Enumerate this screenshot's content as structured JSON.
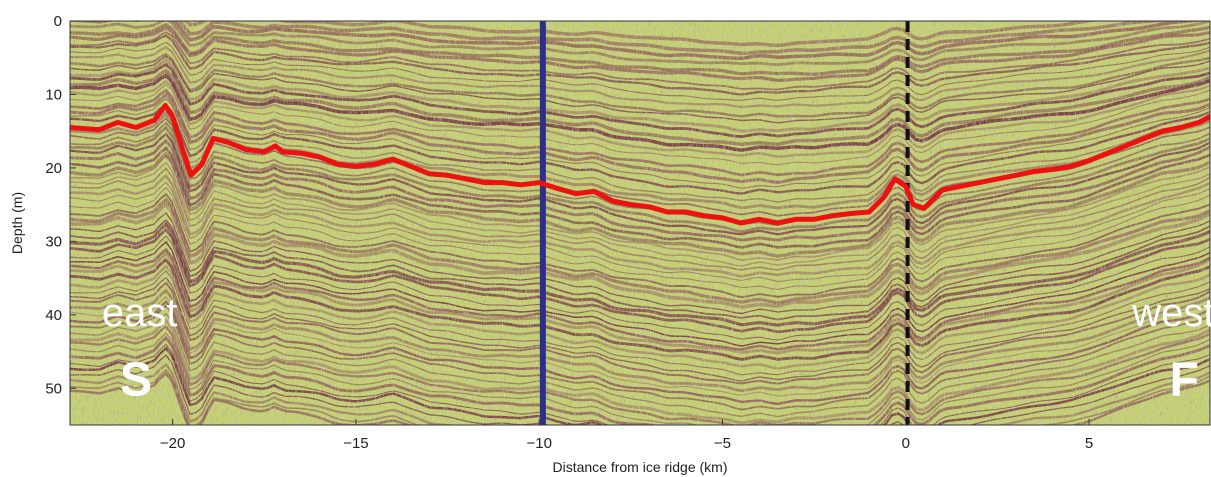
{
  "chart_data": {
    "type": "image",
    "xlabel": "Distance from ice ridge (km)",
    "ylabel": "Depth (m)",
    "xlim": [
      -22.8,
      8.3
    ],
    "ylim": [
      55,
      0
    ],
    "y_inverted": true,
    "x_ticks": [
      -20,
      -15,
      -10,
      -5,
      0,
      5
    ],
    "x_tick_labels": [
      "−20",
      "−15",
      "−10",
      "−5",
      "0",
      "5"
    ],
    "y_ticks": [
      0,
      10,
      20,
      30,
      40,
      50
    ],
    "y_tick_labels": [
      "0",
      "10",
      "20",
      "30",
      "40",
      "50"
    ],
    "colors": {
      "background_light": "#c6d36a",
      "background_dark": "#7a2e3e",
      "trace": "#ee1111",
      "solid_marker": "#2b2f8a",
      "dashed_marker": "#111111"
    },
    "reference_lines": [
      {
        "x": -9.9,
        "style": "solid",
        "color": "#2b2f8a"
      },
      {
        "x": 0.05,
        "style": "dashed",
        "color": "#111111"
      }
    ],
    "series": [
      {
        "x": [
          -22.8,
          -22.0,
          -21.5,
          -21.0,
          -20.5,
          -20.2,
          -20.0,
          -19.7,
          -19.5,
          -19.2,
          -18.9,
          -18.5,
          -18.0,
          -17.5,
          -17.2,
          -17.0,
          -16.5,
          -16.0,
          -15.5,
          -15.0,
          -14.5,
          -14.0,
          -13.5,
          -13.0,
          -12.5,
          -12.0,
          -11.5,
          -11.0,
          -10.5,
          -10.0,
          -9.5,
          -9.0,
          -8.5,
          -8.0,
          -7.5,
          -7.0,
          -6.5,
          -6.0,
          -5.5,
          -5.0,
          -4.5,
          -4.0,
          -3.5,
          -3.0,
          -2.5,
          -2.0,
          -1.5,
          -1.0,
          -0.6,
          -0.3,
          0.0,
          0.2,
          0.5,
          0.8,
          1.0,
          1.5,
          2.0,
          2.5,
          3.0,
          3.5,
          4.0,
          4.5,
          5.0,
          5.5,
          6.0,
          6.5,
          7.0,
          7.5,
          8.0,
          8.3
        ],
        "values": [
          14.5,
          14.8,
          13.8,
          14.5,
          13.5,
          11.5,
          13.0,
          18.0,
          21.0,
          19.5,
          16.0,
          16.5,
          17.5,
          17.8,
          17.0,
          17.8,
          18.0,
          18.5,
          19.5,
          19.8,
          19.5,
          18.8,
          19.8,
          20.8,
          21.0,
          21.5,
          22.0,
          22.0,
          22.3,
          22.0,
          22.8,
          23.5,
          23.2,
          24.5,
          25.0,
          25.3,
          26.0,
          26.0,
          26.5,
          26.8,
          27.5,
          27.0,
          27.5,
          27.0,
          27.0,
          26.5,
          26.2,
          26.0,
          24.0,
          21.5,
          22.5,
          25.0,
          25.5,
          24.0,
          23.0,
          22.5,
          22.0,
          21.5,
          21.0,
          20.5,
          20.2,
          19.8,
          19.0,
          18.0,
          17.0,
          16.0,
          15.0,
          14.5,
          13.8,
          13.0
        ]
      }
    ],
    "annotations": [
      {
        "text": "east",
        "x": -20.9,
        "y": 41.5,
        "role": "word"
      },
      {
        "text": "S",
        "x": -21.0,
        "y": 51.0,
        "role": "letter"
      },
      {
        "text": "west",
        "x": 7.3,
        "y": 41.5,
        "role": "word"
      },
      {
        "text": "F",
        "x": 7.6,
        "y": 51.0,
        "role": "letter"
      }
    ]
  }
}
